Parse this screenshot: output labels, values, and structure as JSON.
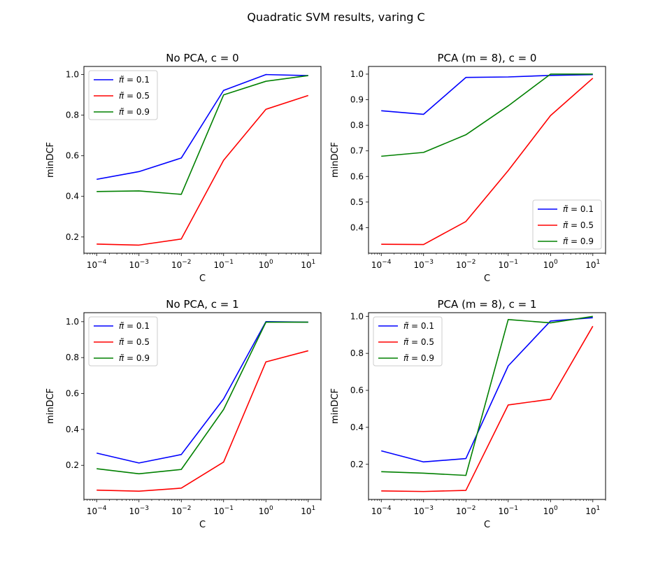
{
  "figure": {
    "suptitle": "Quadratic SVM results, varing C"
  },
  "chart_data": [
    {
      "type": "line",
      "title": "No PCA, c = 0",
      "xlabel": "C",
      "ylabel": "minDCF",
      "x": [
        0.0001,
        0.001,
        0.01,
        0.1,
        1,
        10
      ],
      "xscale": "log",
      "xlim": [
        5e-05,
        20
      ],
      "xticks": [
        "10^-4",
        "10^-3",
        "10^-2",
        "10^-1",
        "10^0",
        "10^1"
      ],
      "ylim": [
        0.12,
        1.04
      ],
      "yticks": [
        0.2,
        0.4,
        0.6,
        0.8,
        1.0
      ],
      "ytick_labels": [
        "0.2",
        "0.4",
        "0.6",
        "0.8",
        "1.0"
      ],
      "legend": "upper left",
      "series": [
        {
          "name": "π̃ = 0.1",
          "color": "#0000ff",
          "values": [
            0.484,
            0.522,
            0.589,
            0.922,
            1.0,
            0.995
          ]
        },
        {
          "name": "π̃ = 0.5",
          "color": "#ff0000",
          "values": [
            0.165,
            0.16,
            0.19,
            0.578,
            0.829,
            0.897
          ]
        },
        {
          "name": "π̃ = 0.9",
          "color": "#008000",
          "values": [
            0.424,
            0.427,
            0.41,
            0.9,
            0.967,
            0.995
          ]
        }
      ]
    },
    {
      "type": "line",
      "title": "PCA (m = 8), c = 0",
      "xlabel": "C",
      "ylabel": "minDCF",
      "x": [
        0.0001,
        0.001,
        0.01,
        0.1,
        1,
        10
      ],
      "xscale": "log",
      "xlim": [
        5e-05,
        20
      ],
      "xticks": [
        "10^-4",
        "10^-3",
        "10^-2",
        "10^-1",
        "10^0",
        "10^1"
      ],
      "ylim": [
        0.3,
        1.03
      ],
      "yticks": [
        0.4,
        0.5,
        0.6,
        0.7,
        0.8,
        0.9,
        1.0
      ],
      "ytick_labels": [
        "0.4",
        "0.5",
        "0.6",
        "0.7",
        "0.8",
        "0.9",
        "1.0"
      ],
      "legend": "lower right",
      "series": [
        {
          "name": "π̃ = 0.1",
          "color": "#0000ff",
          "values": [
            0.857,
            0.843,
            0.987,
            0.989,
            0.995,
            0.998
          ]
        },
        {
          "name": "π̃ = 0.5",
          "color": "#ff0000",
          "values": [
            0.335,
            0.334,
            0.424,
            0.623,
            0.838,
            0.984
          ]
        },
        {
          "name": "π̃ = 0.9",
          "color": "#008000",
          "values": [
            0.679,
            0.694,
            0.763,
            0.876,
            1.0,
            1.0
          ]
        }
      ]
    },
    {
      "type": "line",
      "title": "No PCA, c = 1",
      "xlabel": "C",
      "ylabel": "minDCF",
      "x": [
        0.0001,
        0.001,
        0.01,
        0.1,
        1,
        10
      ],
      "xscale": "log",
      "xlim": [
        5e-05,
        20
      ],
      "xticks": [
        "10^-4",
        "10^-3",
        "10^-2",
        "10^-1",
        "10^0",
        "10^1"
      ],
      "ylim": [
        0.01,
        1.05
      ],
      "yticks": [
        0.2,
        0.4,
        0.6,
        0.8,
        1.0
      ],
      "ytick_labels": [
        "0.2",
        "0.4",
        "0.6",
        "0.8",
        "1.0"
      ],
      "legend": "upper left",
      "series": [
        {
          "name": "π̃ = 0.1",
          "color": "#0000ff",
          "values": [
            0.268,
            0.213,
            0.26,
            0.57,
            1.0,
            0.997
          ]
        },
        {
          "name": "π̃ = 0.5",
          "color": "#ff0000",
          "values": [
            0.062,
            0.056,
            0.073,
            0.218,
            0.776,
            0.838
          ]
        },
        {
          "name": "π̃ = 0.9",
          "color": "#008000",
          "values": [
            0.181,
            0.153,
            0.177,
            0.511,
            0.997,
            0.997
          ]
        }
      ]
    },
    {
      "type": "line",
      "title": "PCA (m = 8), c = 1",
      "xlabel": "C",
      "ylabel": "minDCF",
      "x": [
        0.0001,
        0.001,
        0.01,
        0.1,
        1,
        10
      ],
      "xscale": "log",
      "xlim": [
        5e-05,
        20
      ],
      "xticks": [
        "10^-4",
        "10^-3",
        "10^-2",
        "10^-1",
        "10^0",
        "10^1"
      ],
      "ylim": [
        0.01,
        1.02
      ],
      "yticks": [
        0.2,
        0.4,
        0.6,
        0.8,
        1.0
      ],
      "ytick_labels": [
        "0.2",
        "0.4",
        "0.6",
        "0.8",
        "1.0"
      ],
      "legend": "upper left",
      "series": [
        {
          "name": "π̃ = 0.1",
          "color": "#0000ff",
          "values": [
            0.273,
            0.213,
            0.231,
            0.732,
            0.975,
            0.993
          ]
        },
        {
          "name": "π̃ = 0.5",
          "color": "#ff0000",
          "values": [
            0.056,
            0.053,
            0.059,
            0.521,
            0.552,
            0.947
          ]
        },
        {
          "name": "π̃ = 0.9",
          "color": "#008000",
          "values": [
            0.16,
            0.152,
            0.14,
            0.983,
            0.965,
            1.0
          ]
        }
      ]
    }
  ]
}
